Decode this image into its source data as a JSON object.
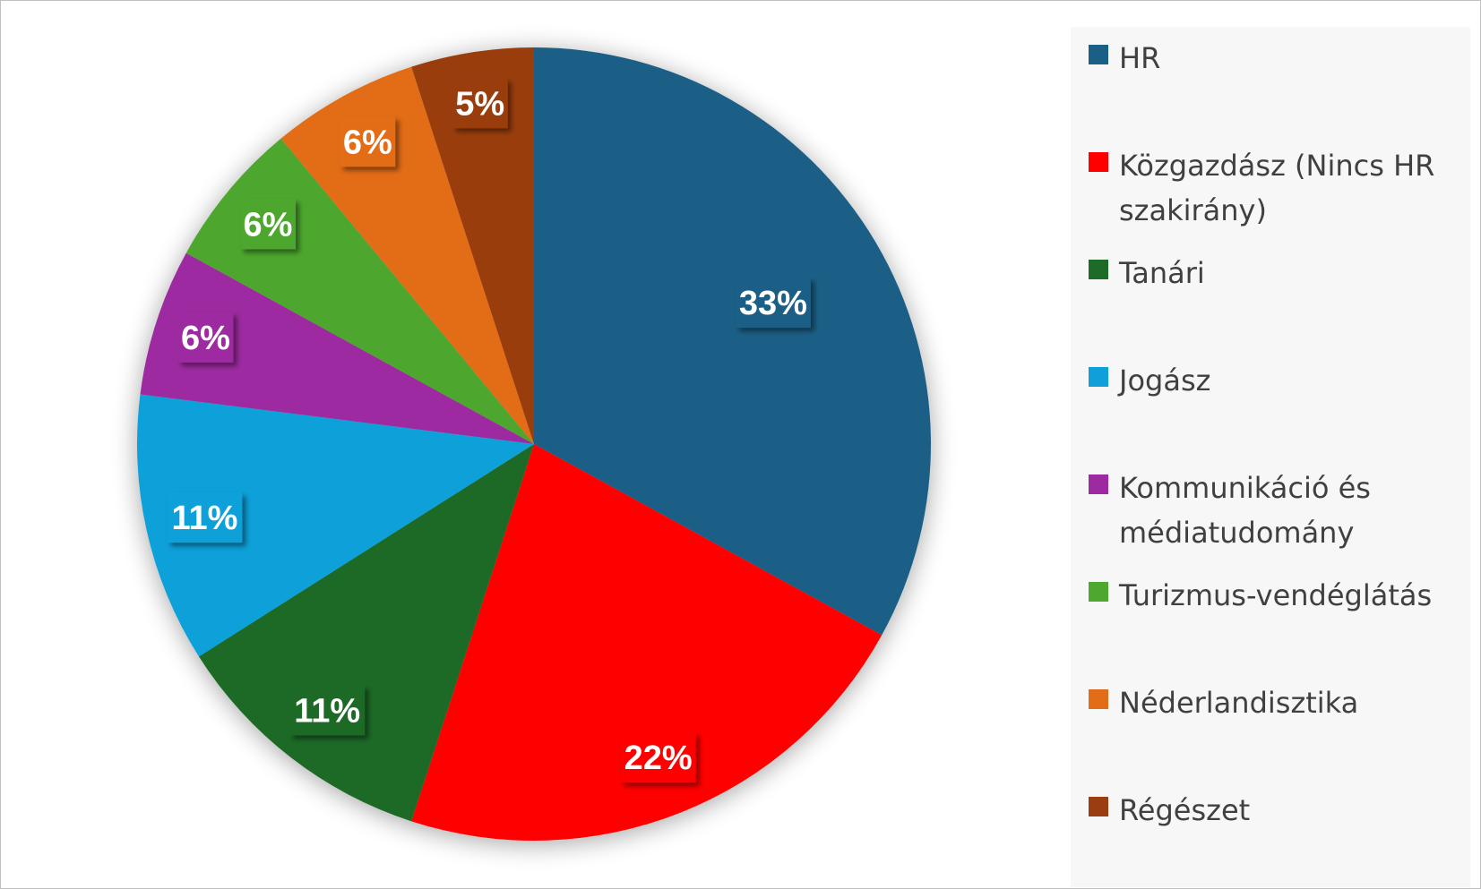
{
  "chart_data": {
    "type": "pie",
    "categories": [
      "HR",
      "Közgazdász (Nincs HR szakirány)",
      "Tanári",
      "Jogász",
      "Kommunikáció és médiatudomány",
      "Turizmus-vendéglátás",
      "Néderlandisztika",
      "Régészet"
    ],
    "values": [
      33,
      22,
      11,
      11,
      6,
      6,
      6,
      5
    ],
    "labels": [
      "33%",
      "22%",
      "11%",
      "11%",
      "6%",
      "6%",
      "6%",
      "5%"
    ],
    "colors": [
      "#1b5f86",
      "#ff0000",
      "#1e6b27",
      "#0fa0d9",
      "#9d2aa0",
      "#4ea72e",
      "#e36c18",
      "#9a3d11"
    ],
    "legend_position": "right",
    "start": "top",
    "direction": "clockwise"
  }
}
